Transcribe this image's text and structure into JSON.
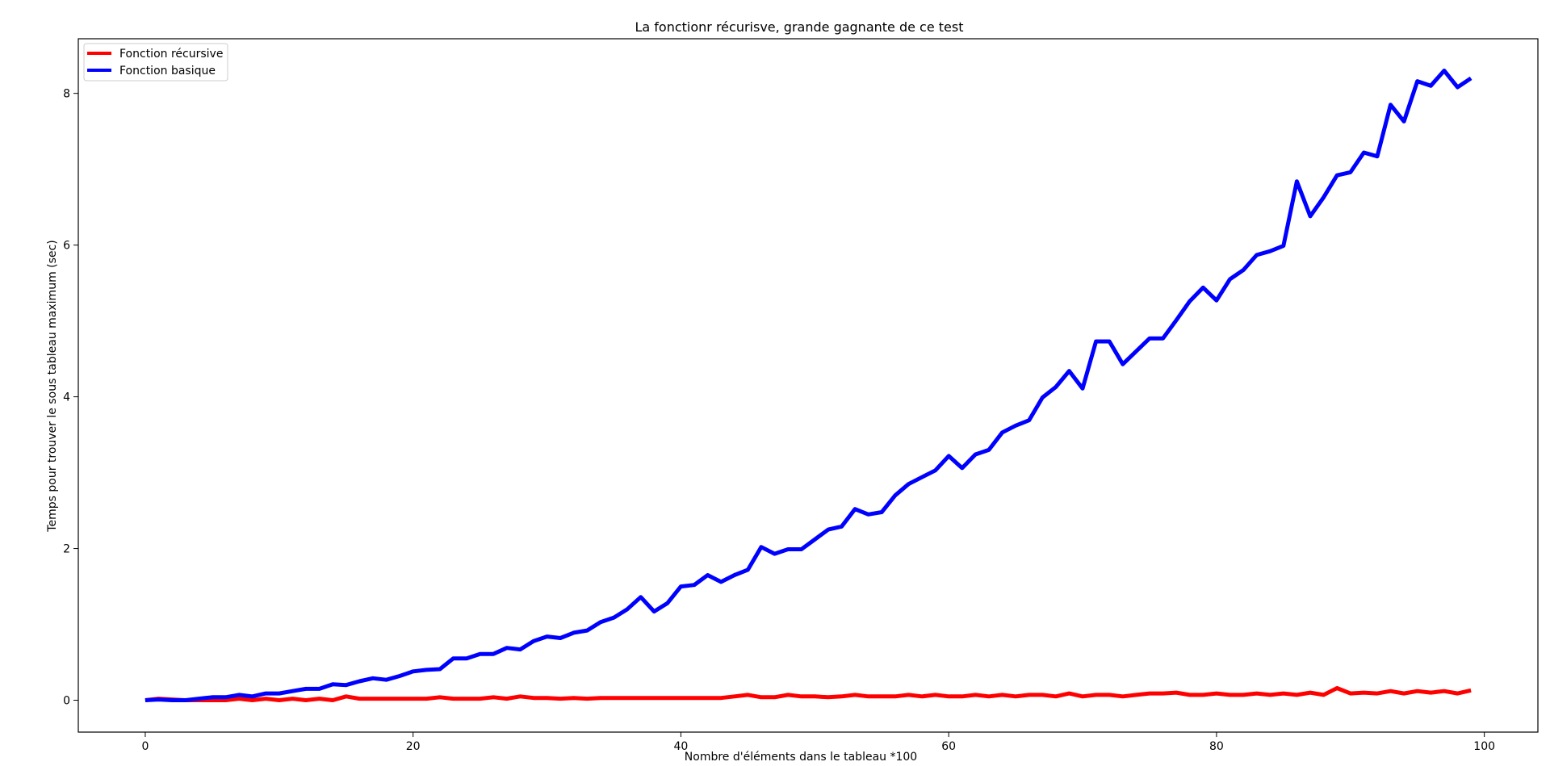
{
  "chart_data": {
    "type": "line",
    "title": "La fonctionr récurisve, grande gagnante de ce test",
    "xlabel": "Nombre d'éléments dans le tableau *100",
    "ylabel": "Temps pour trouver le sous tableau maximum (sec)",
    "xlim": [
      -5,
      104
    ],
    "ylim": [
      -0.42,
      8.72
    ],
    "xticks": [
      0,
      20,
      40,
      60,
      80,
      100
    ],
    "yticks": [
      0,
      2,
      4,
      6,
      8
    ],
    "grid": false,
    "legend_position": "top-left",
    "x": [
      0,
      1,
      2,
      3,
      4,
      5,
      6,
      7,
      8,
      9,
      10,
      11,
      12,
      13,
      14,
      15,
      16,
      17,
      18,
      19,
      20,
      21,
      22,
      23,
      24,
      25,
      26,
      27,
      28,
      29,
      30,
      31,
      32,
      33,
      34,
      35,
      36,
      37,
      38,
      39,
      40,
      41,
      42,
      43,
      44,
      45,
      46,
      47,
      48,
      49,
      50,
      51,
      52,
      53,
      54,
      55,
      56,
      57,
      58,
      59,
      60,
      61,
      62,
      63,
      64,
      65,
      66,
      67,
      68,
      69,
      70,
      71,
      72,
      73,
      74,
      75,
      76,
      77,
      78,
      79,
      80,
      81,
      82,
      83,
      84,
      85,
      86,
      87,
      88,
      89,
      90,
      91,
      92,
      93,
      94,
      95,
      96,
      97,
      98,
      99
    ],
    "series": [
      {
        "name": "Fonction récursive",
        "color": "#ff0000",
        "values": [
          0.0,
          0.02,
          0.01,
          0.0,
          0.0,
          0.0,
          0.0,
          0.02,
          0.0,
          0.02,
          0.0,
          0.02,
          0.0,
          0.02,
          0.0,
          0.05,
          0.02,
          0.02,
          0.02,
          0.02,
          0.02,
          0.02,
          0.04,
          0.02,
          0.02,
          0.02,
          0.04,
          0.02,
          0.05,
          0.03,
          0.03,
          0.02,
          0.03,
          0.02,
          0.03,
          0.03,
          0.03,
          0.03,
          0.03,
          0.03,
          0.03,
          0.03,
          0.03,
          0.03,
          0.05,
          0.07,
          0.04,
          0.04,
          0.07,
          0.05,
          0.05,
          0.04,
          0.05,
          0.07,
          0.05,
          0.05,
          0.05,
          0.07,
          0.05,
          0.07,
          0.05,
          0.05,
          0.07,
          0.05,
          0.07,
          0.05,
          0.07,
          0.07,
          0.05,
          0.09,
          0.05,
          0.07,
          0.07,
          0.05,
          0.07,
          0.09,
          0.09,
          0.1,
          0.07,
          0.07,
          0.09,
          0.07,
          0.07,
          0.09,
          0.07,
          0.09,
          0.07,
          0.1,
          0.07,
          0.16,
          0.09,
          0.1,
          0.09,
          0.12,
          0.09,
          0.12,
          0.1,
          0.12,
          0.09,
          0.13
        ]
      },
      {
        "name": "Fonction basique",
        "color": "#0000ff",
        "values": [
          0.0,
          0.01,
          0.0,
          0.0,
          0.02,
          0.04,
          0.04,
          0.07,
          0.05,
          0.09,
          0.09,
          0.12,
          0.15,
          0.15,
          0.21,
          0.2,
          0.25,
          0.29,
          0.27,
          0.32,
          0.38,
          0.4,
          0.41,
          0.55,
          0.55,
          0.61,
          0.61,
          0.69,
          0.67,
          0.78,
          0.84,
          0.82,
          0.89,
          0.92,
          1.03,
          1.09,
          1.2,
          1.36,
          1.17,
          1.28,
          1.5,
          1.52,
          1.65,
          1.56,
          1.65,
          1.72,
          2.02,
          1.93,
          1.99,
          1.99,
          2.12,
          2.25,
          2.29,
          2.52,
          2.45,
          2.48,
          2.7,
          2.85,
          2.94,
          3.03,
          3.22,
          3.06,
          3.24,
          3.3,
          3.53,
          3.62,
          3.69,
          3.99,
          4.13,
          4.34,
          4.11,
          4.73,
          4.73,
          4.43,
          4.6,
          4.77,
          4.77,
          5.01,
          5.26,
          5.44,
          5.27,
          5.55,
          5.67,
          5.87,
          5.92,
          5.99,
          6.84,
          6.38,
          6.63,
          6.92,
          6.96,
          7.22,
          7.17,
          7.85,
          7.63,
          8.16,
          8.1,
          8.3,
          8.08,
          8.2
        ]
      }
    ]
  }
}
